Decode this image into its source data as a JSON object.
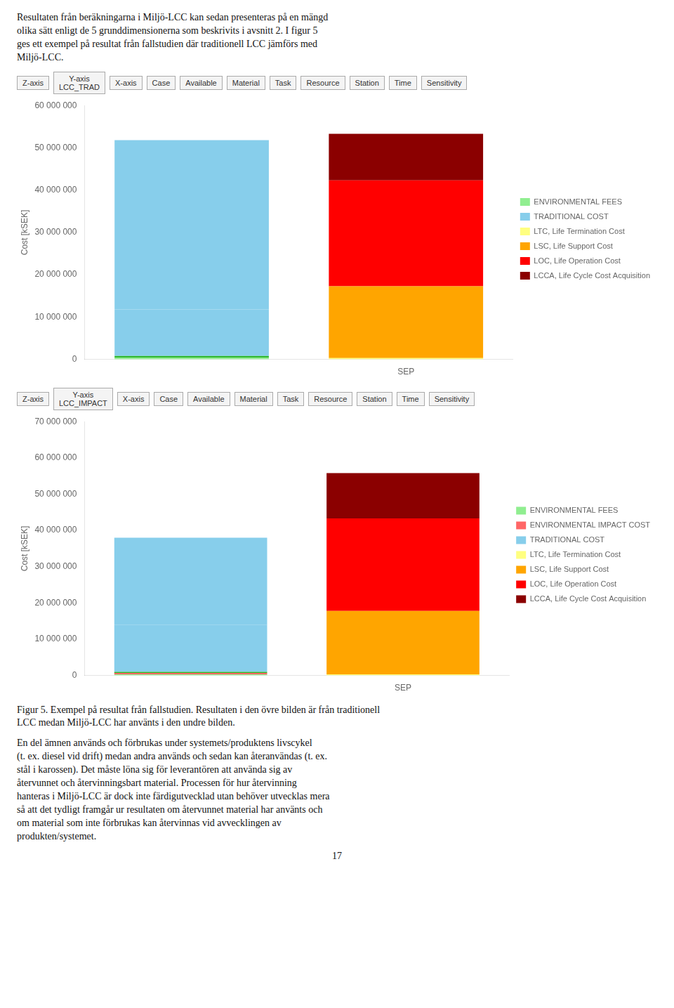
{
  "annotations": [
    "Resultaten från beräkningarna i Miljö-LCC kan sedan presenteras på en mängd\nolika sätt enligt de 5 grunddimensionerna som beskrivits i avsnitt 2. I figur 5\nges ett exempel på resultat från fallstudien där traditionell LCC jämförs med\nMiljö-LCC.",
    "Figur 5.  Exempel på resultat från fallstudien. Resultaten i den övre bilden är från traditionell\nLCC medan Miljö-LCC har använts i den undre bilden.",
    "En del ämnen används och förbrukas under systemets/produktens livscykel\n(t. ex. diesel vid drift) medan andra används och sedan kan återanvändas (t. ex.\nstål i karossen). Det måste löna sig för leverantören att använda sig av\nåtervunnet och återvinningsbart material. Processen för hur återvinning\nhanteras i Miljö-LCC är dock inte färdigutvecklad utan behöver utvecklas mera\nså att det tydligt framgår ur resultaten om återvunnet material har använts och\nom material som inte förbrukas kan återvinnas vid avvecklingen av\nprodukten/systemet.",
    "17"
  ],
  "chart_data": [
    {
      "type": "bar",
      "stacked": true,
      "grid": false,
      "legend": "right",
      "y_label": "Cost [kSEK]",
      "annotations": [
        "Z-axis",
        "Y-axis\nLCC_TRAD",
        "X-axis",
        "Case",
        "Available",
        "Material",
        "Task",
        "Resource",
        "Station",
        "Time",
        "Sensitivity"
      ],
      "categories": [
        null,
        "SEP"
      ],
      "ylim": [
        0,
        60000000
      ],
      "yticks": [
        0,
        {
          "value": 10000000,
          "label": "10 000 000"
        },
        {
          "value": 20000000,
          "label": "20 000 000"
        },
        {
          "value": 30000000,
          "label": "30 000 000"
        },
        {
          "value": 40000000,
          "label": "40 000 000"
        },
        {
          "value": 50000000,
          "label": "50 000 000"
        },
        {
          "value": 60000000,
          "label": "60 000 000"
        }
      ],
      "series": [
        {
          "name": "ENVIRONMENTAL FEES",
          "color": "#90EE90",
          "values": [
            400000,
            null
          ]
        },
        {
          "color": "#2db82d",
          "values": [
            400000,
            null
          ]
        },
        {
          "name": "TRADITIONAL COST",
          "color": "#87CEEB",
          "values": [
            11000000,
            null
          ]
        },
        {
          "name": "TRADITIONAL COST",
          "color": "#87CEEB",
          "values": [
            40000000,
            null
          ]
        },
        {
          "name": "LTC, Life Termination Cost",
          "color": "#FFFF80",
          "values": [
            null,
            300000
          ]
        },
        {
          "name": "LSC, Life Support Cost",
          "color": "#FFA500",
          "values": [
            null,
            17000000
          ]
        },
        {
          "name": "LOC, Life Operation Cost",
          "color": "#FF0000",
          "values": [
            null,
            25000000
          ]
        },
        {
          "name": "LCCA, Life Cycle Cost Acquisition",
          "color": "#8B0000",
          "values": [
            null,
            11000000
          ]
        }
      ]
    },
    {
      "type": "bar",
      "stacked": true,
      "grid": false,
      "legend": "right",
      "y_label": "Cost [kSEK]",
      "annotations": [
        "Z-axis",
        "Y-axis\nLCC_IMPACT",
        "X-axis",
        "Case",
        "Available",
        "Material",
        "Task",
        "Resource",
        "Station",
        "Time",
        "Sensitivity"
      ],
      "categories": [
        null,
        "SEP"
      ],
      "ylim": [
        0,
        70000000
      ],
      "yticks": [
        0,
        {
          "value": 10000000,
          "label": "10 000 000"
        },
        {
          "value": 20000000,
          "label": "20 000 000"
        },
        {
          "value": 30000000,
          "label": "30 000 000"
        },
        {
          "value": 40000000,
          "label": "40 000 000"
        },
        {
          "value": 50000000,
          "label": "50 000 000"
        },
        {
          "value": 60000000,
          "label": "60 000 000"
        },
        {
          "value": 70000000,
          "label": "70 000 000"
        }
      ],
      "series": [
        {
          "name": "ENVIRONMENTAL FEES",
          "color": "#90EE90",
          "values": [
            300000,
            null
          ]
        },
        {
          "name": "ENVIRONMENTAL IMPACT COST",
          "color": "#FF6666",
          "values": [
            400000,
            null
          ]
        },
        {
          "color": "#2db82d",
          "values": [
            300000,
            null
          ]
        },
        {
          "name": "TRADITIONAL COST",
          "color": "#87CEEB",
          "values": [
            13000000,
            null
          ]
        },
        {
          "name": "TRADITIONAL COST",
          "color": "#87CEEB",
          "values": [
            24000000,
            null
          ]
        },
        {
          "name": "LTC, Life Termination Cost",
          "color": "#FFFF80",
          "values": [
            null,
            300000
          ]
        },
        {
          "name": "LSC, Life Support Cost",
          "color": "#FFA500",
          "values": [
            null,
            17500000
          ]
        },
        {
          "name": "LOC, Life Operation Cost",
          "color": "#FF0000",
          "values": [
            null,
            25500000
          ]
        },
        {
          "name": "LCCA, Life Cycle Cost Acquisition",
          "color": "#8B0000",
          "values": [
            null,
            12500000
          ]
        }
      ]
    }
  ]
}
